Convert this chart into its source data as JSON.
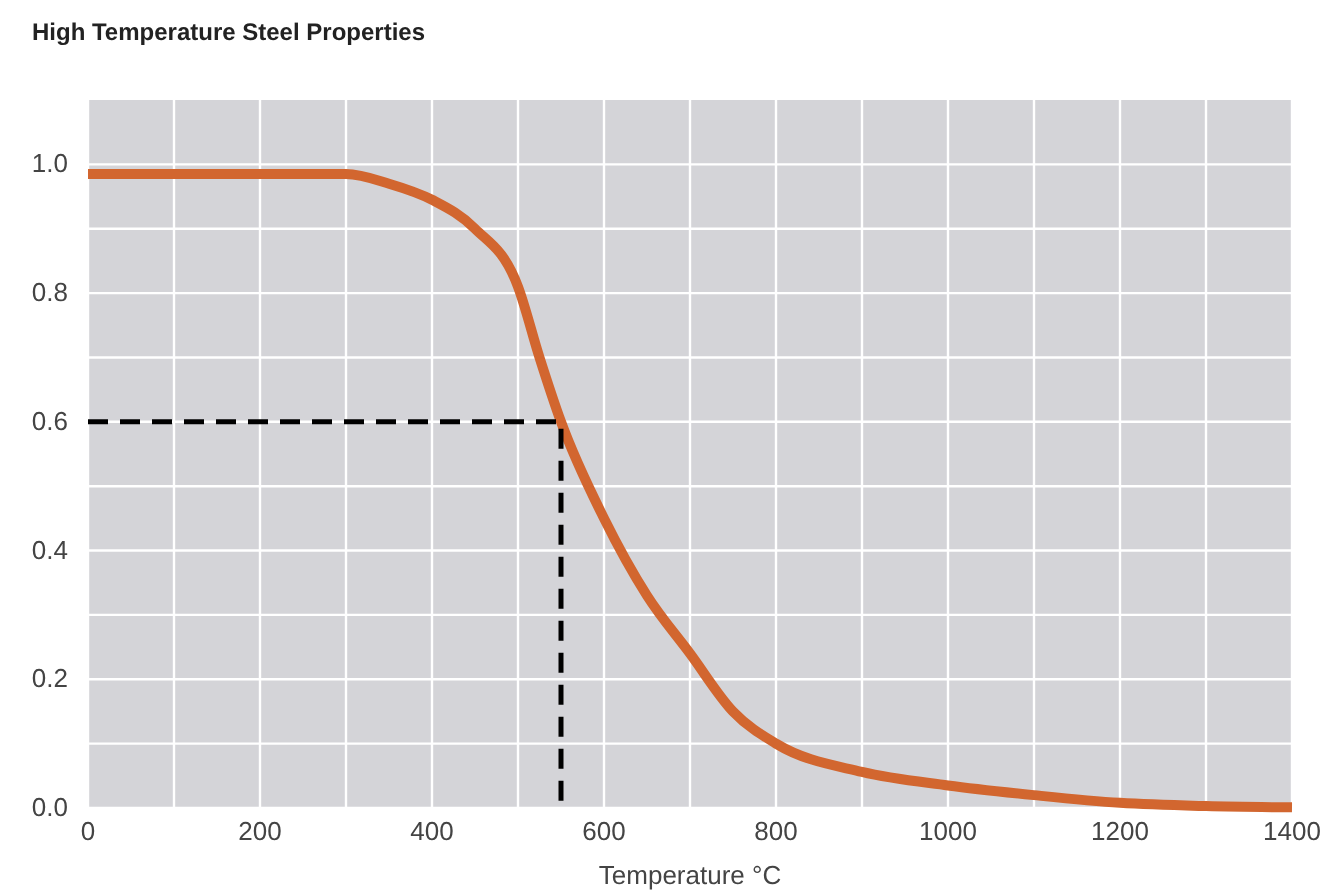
{
  "chart_data": {
    "type": "line",
    "title": "High Temperature Steel Properties",
    "xlabel": "Temperature °C",
    "xlim": [
      0,
      1400
    ],
    "xticks": [
      0,
      {
        "value": 100,
        "label": null
      },
      200,
      {
        "value": 300,
        "label": null
      },
      400,
      {
        "value": 500,
        "label": null
      },
      600,
      {
        "value": 700,
        "label": null
      },
      800,
      {
        "value": 900,
        "label": null
      },
      1000,
      {
        "value": 1100,
        "label": null
      },
      1200,
      {
        "value": 1300,
        "label": null
      },
      1400
    ],
    "ylim": [
      0,
      1.1
    ],
    "yticks": [
      {
        "value": 0,
        "label": "0.0"
      },
      {
        "value": 0.1,
        "label": null
      },
      0.2,
      {
        "value": 0.3,
        "label": null
      },
      0.4,
      {
        "value": 0.5,
        "label": null
      },
      0.6,
      {
        "value": 0.7,
        "label": null
      },
      0.8,
      {
        "value": 0.9,
        "label": null
      },
      {
        "value": 1,
        "label": "1.0"
      }
    ],
    "grid": true,
    "marker": "none",
    "series": [
      {
        "color": "#d2662f",
        "line_style": "solid",
        "x": [
          0,
          100,
          200,
          250,
          300,
          350,
          400,
          450,
          500,
          525,
          550,
          600,
          650,
          700,
          750,
          800,
          900,
          1000,
          1100,
          1200,
          1300,
          1400
        ],
        "values": [
          0.985,
          0.985,
          0.985,
          0.985,
          0.985,
          0.97,
          0.945,
          0.9,
          0.81,
          0.7,
          0.6,
          0.45,
          0.33,
          0.24,
          0.15,
          0.1,
          0.056,
          0.035,
          0.02,
          0.008,
          0.003,
          0.001
        ]
      },
      {
        "color": "#000000",
        "line_style": "dashed",
        "x": [
          0,
          550,
          550
        ],
        "values": [
          0.6,
          0.6,
          0
        ]
      }
    ]
  }
}
